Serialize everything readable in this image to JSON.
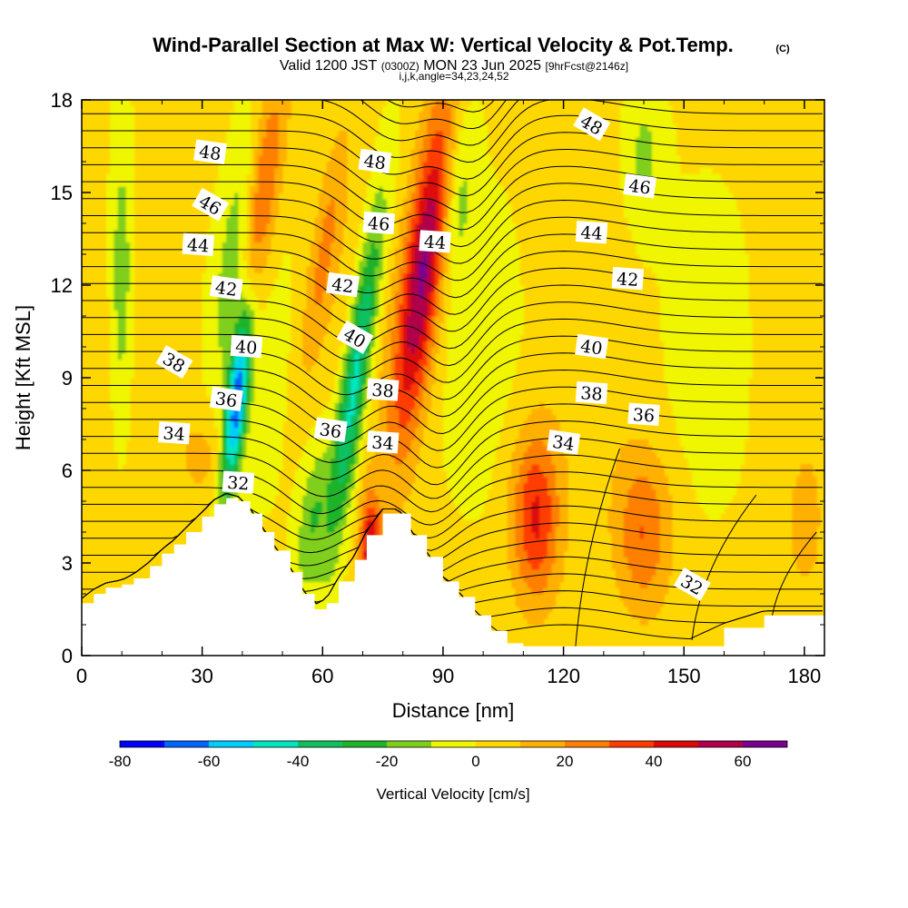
{
  "chart_data": {
    "type": "heatmap",
    "title": "Wind-Parallel Section at Max W: Vertical Velocity & Pot.Temp.",
    "copyright": "(C)",
    "subtitle": {
      "valid_prefix": "Valid 1200 JST",
      "utc": "(0300Z)",
      "date": "MON 23 Jun 2025",
      "forecast": "[9hrFcst@2146z]"
    },
    "grid_info": "i,j,k,angle=34,23,24,52",
    "xlabel": "Distance [nm]",
    "ylabel": "Height [Kft MSL]",
    "xlim": [
      0,
      185
    ],
    "ylim": [
      0,
      18
    ],
    "x_ticks": [
      "0",
      "30",
      "60",
      "90",
      "120",
      "150",
      "180"
    ],
    "y_ticks": [
      "0",
      "3",
      "6",
      "9",
      "12",
      "15",
      "18"
    ],
    "colorbar": {
      "title": "Vertical Velocity [cm/s]",
      "levels": [
        -80,
        -70,
        -60,
        -50,
        -40,
        -30,
        -20,
        -10,
        0,
        10,
        20,
        30,
        40,
        50,
        60,
        70
      ],
      "labels": [
        "-80",
        "-60",
        "-40",
        "-20",
        "0",
        "20",
        "40",
        "60"
      ],
      "colors": [
        "#0000ff",
        "#0066ff",
        "#00ccff",
        "#00e6c0",
        "#10c060",
        "#1fb32a",
        "#7fcf1a",
        "#f0f500",
        "#ffd700",
        "#ffb000",
        "#ff8000",
        "#ff3c00",
        "#dd0a0a",
        "#b0004a",
        "#7a0090"
      ]
    },
    "terrain_height_kft": [
      {
        "x": 0,
        "y": 1.7
      },
      {
        "x": 3,
        "y": 2.0
      },
      {
        "x": 6,
        "y": 2.2
      },
      {
        "x": 10,
        "y": 2.3
      },
      {
        "x": 13,
        "y": 2.5
      },
      {
        "x": 17,
        "y": 2.9
      },
      {
        "x": 20,
        "y": 3.3
      },
      {
        "x": 23,
        "y": 3.6
      },
      {
        "x": 26,
        "y": 4.0
      },
      {
        "x": 30,
        "y": 4.5
      },
      {
        "x": 33,
        "y": 4.9
      },
      {
        "x": 36,
        "y": 5.1
      },
      {
        "x": 39,
        "y": 5.0
      },
      {
        "x": 42,
        "y": 4.6
      },
      {
        "x": 45,
        "y": 4.0
      },
      {
        "x": 48,
        "y": 3.4
      },
      {
        "x": 52,
        "y": 2.7
      },
      {
        "x": 55,
        "y": 2.0
      },
      {
        "x": 58,
        "y": 1.5
      },
      {
        "x": 61,
        "y": 1.7
      },
      {
        "x": 64,
        "y": 2.4
      },
      {
        "x": 68,
        "y": 3.1
      },
      {
        "x": 71,
        "y": 3.9
      },
      {
        "x": 75,
        "y": 4.6
      },
      {
        "x": 79,
        "y": 4.6
      },
      {
        "x": 82,
        "y": 3.9
      },
      {
        "x": 86,
        "y": 3.2
      },
      {
        "x": 90,
        "y": 2.4
      },
      {
        "x": 94,
        "y": 1.9
      },
      {
        "x": 98,
        "y": 1.3
      },
      {
        "x": 102,
        "y": 0.8
      },
      {
        "x": 106,
        "y": 0.4
      },
      {
        "x": 110,
        "y": 0.3
      },
      {
        "x": 120,
        "y": 0.3
      },
      {
        "x": 130,
        "y": 0.3
      },
      {
        "x": 140,
        "y": 0.3
      },
      {
        "x": 150,
        "y": 0.3
      },
      {
        "x": 160,
        "y": 0.9
      },
      {
        "x": 170,
        "y": 1.3
      },
      {
        "x": 185,
        "y": 1.3
      }
    ],
    "isentrope_labels": [
      {
        "value": "48",
        "x": 32,
        "y": 16.3
      },
      {
        "value": "46",
        "x": 32,
        "y": 14.6
      },
      {
        "value": "44",
        "x": 29,
        "y": 13.3
      },
      {
        "value": "42",
        "x": 36,
        "y": 11.9
      },
      {
        "value": "40",
        "x": 41,
        "y": 10.0
      },
      {
        "value": "38",
        "x": 23,
        "y": 9.5
      },
      {
        "value": "36",
        "x": 36,
        "y": 8.3
      },
      {
        "value": "34",
        "x": 23,
        "y": 7.2
      },
      {
        "value": "32",
        "x": 39,
        "y": 5.6
      },
      {
        "value": "48",
        "x": 73,
        "y": 16.0
      },
      {
        "value": "46",
        "x": 74,
        "y": 14.0
      },
      {
        "value": "44",
        "x": 88,
        "y": 13.4
      },
      {
        "value": "42",
        "x": 65,
        "y": 12.0
      },
      {
        "value": "40",
        "x": 68,
        "y": 10.3
      },
      {
        "value": "38",
        "x": 75,
        "y": 8.6
      },
      {
        "value": "36",
        "x": 62,
        "y": 7.3
      },
      {
        "value": "34",
        "x": 75,
        "y": 6.9
      },
      {
        "value": "48",
        "x": 127,
        "y": 17.2
      },
      {
        "value": "46",
        "x": 139,
        "y": 15.2
      },
      {
        "value": "44",
        "x": 127,
        "y": 13.7
      },
      {
        "value": "42",
        "x": 136,
        "y": 12.2
      },
      {
        "value": "40",
        "x": 127,
        "y": 10.0
      },
      {
        "value": "38",
        "x": 127,
        "y": 8.5
      },
      {
        "value": "36",
        "x": 140,
        "y": 7.8
      },
      {
        "value": "34",
        "x": 120,
        "y": 6.9
      },
      {
        "value": "32",
        "x": 152,
        "y": 2.3
      }
    ],
    "velocity_features": [
      {
        "label": "updraft core",
        "x": 85,
        "y": 12.5,
        "value": 60
      },
      {
        "label": "updraft band",
        "x": 46,
        "y": 14.0,
        "value": 40
      },
      {
        "label": "low-level updraft",
        "x": 113,
        "y": 4.5,
        "value": 40
      },
      {
        "label": "low-level updraft",
        "x": 140,
        "y": 4.0,
        "value": 30
      },
      {
        "label": "low-level updraft",
        "x": 72,
        "y": 3.5,
        "value": 50
      },
      {
        "label": "downdraft",
        "x": 42,
        "y": 8.0,
        "value": -70
      },
      {
        "label": "downdraft",
        "x": 76,
        "y": 9.0,
        "value": -50
      }
    ]
  }
}
